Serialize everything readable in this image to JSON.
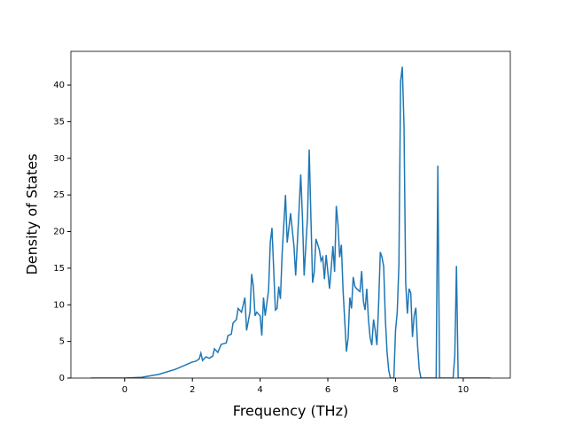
{
  "chart_data": {
    "type": "line",
    "xlabel": "Frequency (THz)",
    "ylabel": "Density of States",
    "x": [
      -1,
      0,
      0.5,
      1,
      1.5,
      2,
      2.1,
      2.2,
      2.25,
      2.3,
      2.4,
      2.5,
      2.6,
      2.65,
      2.75,
      2.85,
      3,
      3.05,
      3.15,
      3.2,
      3.3,
      3.35,
      3.45,
      3.55,
      3.6,
      3.7,
      3.75,
      3.8,
      3.85,
      3.9,
      4,
      4.05,
      4.1,
      4.15,
      4.25,
      4.3,
      4.35,
      4.45,
      4.5,
      4.55,
      4.6,
      4.65,
      4.75,
      4.8,
      4.9,
      5,
      5.05,
      5.15,
      5.2,
      5.25,
      5.3,
      5.4,
      5.45,
      5.5,
      5.55,
      5.6,
      5.65,
      5.75,
      5.8,
      5.85,
      5.9,
      5.95,
      6.05,
      6.1,
      6.15,
      6.2,
      6.25,
      6.3,
      6.35,
      6.4,
      6.45,
      6.55,
      6.6,
      6.65,
      6.7,
      6.75,
      6.8,
      6.85,
      6.95,
      7,
      7.05,
      7.1,
      7.15,
      7.2,
      7.25,
      7.3,
      7.35,
      7.4,
      7.45,
      7.5,
      7.55,
      7.6,
      7.65,
      7.7,
      7.75,
      7.8,
      7.85,
      7.95,
      8,
      8.05,
      8.1,
      8.15,
      8.2,
      8.25,
      8.3,
      8.35,
      8.4,
      8.45,
      8.5,
      8.55,
      8.6,
      8.65,
      8.7,
      8.75,
      9.2,
      9.25,
      9.3,
      9.7,
      9.75,
      9.8,
      9.85,
      10.8
    ],
    "values": [
      0,
      0,
      0.1,
      0.5,
      1.2,
      2.2,
      2.3,
      2.6,
      3.4,
      2.4,
      2.9,
      2.7,
      3,
      4,
      3.5,
      4.6,
      4.8,
      5.8,
      6,
      7.5,
      8,
      9.5,
      9,
      11,
      6.5,
      9,
      14.2,
      12.5,
      8.5,
      9,
      8.5,
      5.8,
      11,
      8.5,
      12,
      18.5,
      20.5,
      9.3,
      9.5,
      12.5,
      10.8,
      17,
      25,
      18.5,
      22.5,
      18,
      14,
      23,
      27.8,
      22,
      14,
      22,
      31.2,
      22,
      13,
      14.5,
      19,
      17.5,
      16,
      16.5,
      13.5,
      16.8,
      12.2,
      15,
      18,
      14.5,
      23.5,
      21,
      16.5,
      18.2,
      12,
      3.6,
      5.5,
      11,
      9.5,
      13.8,
      12.5,
      12.2,
      11.8,
      14.6,
      10.5,
      9.3,
      12.2,
      8,
      5.5,
      4.5,
      8,
      6.5,
      4.5,
      10,
      17.2,
      16.5,
      15.2,
      8,
      3.5,
      1,
      0,
      0,
      6.5,
      9,
      15.5,
      40.5,
      42.5,
      34.5,
      13,
      8.8,
      12.2,
      11.6,
      5.6,
      8.5,
      9.6,
      4.5,
      1.2,
      0,
      0,
      29,
      0,
      0,
      3,
      15.3,
      0,
      0
    ],
    "color": "#1f77b4",
    "xlim": [
      -1.59,
      11.39
    ],
    "xticks": [
      0,
      2,
      4,
      6,
      8,
      10
    ],
    "ylim": [
      0,
      44.6
    ],
    "yticks": [
      0,
      5,
      10,
      15,
      20,
      25,
      30,
      35,
      40
    ]
  }
}
